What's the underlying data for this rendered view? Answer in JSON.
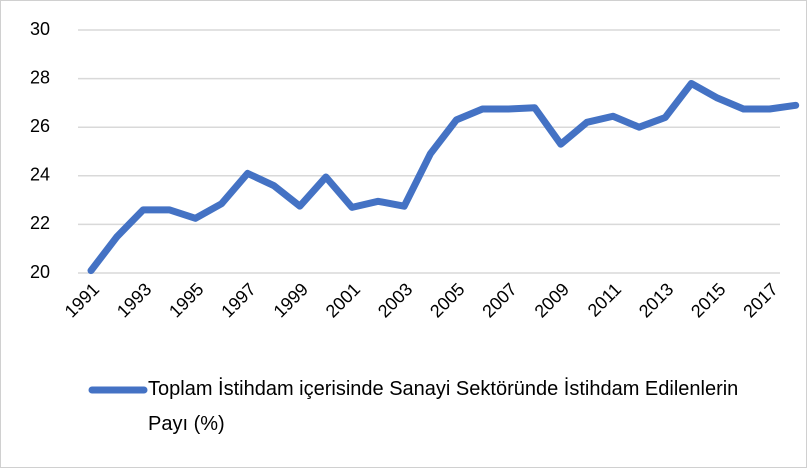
{
  "chart_data": {
    "type": "line",
    "categories": [
      "1991",
      null,
      "1993",
      null,
      "1995",
      null,
      "1997",
      null,
      "1999",
      null,
      "2001",
      null,
      "2003",
      null,
      "2005",
      null,
      "2007",
      null,
      "2009",
      null,
      "2011",
      null,
      "2013",
      null,
      "2015",
      null,
      "2017",
      null
    ],
    "series": [
      {
        "name": "Toplam İstihdam içerisinde Sanayi Sektöründe İstihdam Edilenlerin Payı (%)",
        "color": "#4472c4",
        "values": [
          20.1,
          21.5,
          22.6,
          22.6,
          22.25,
          22.85,
          24.1,
          23.6,
          22.75,
          23.95,
          22.7,
          22.95,
          22.75,
          24.9,
          26.3,
          26.75,
          26.75,
          26.8,
          25.3,
          26.2,
          26.45,
          26.0,
          26.4,
          27.8,
          27.2,
          26.75,
          26.75,
          26.9
        ]
      }
    ],
    "ylim": [
      20,
      30
    ],
    "yticks": [
      20,
      22,
      24,
      26,
      28,
      30
    ],
    "grid": true,
    "legend": "bottom"
  }
}
